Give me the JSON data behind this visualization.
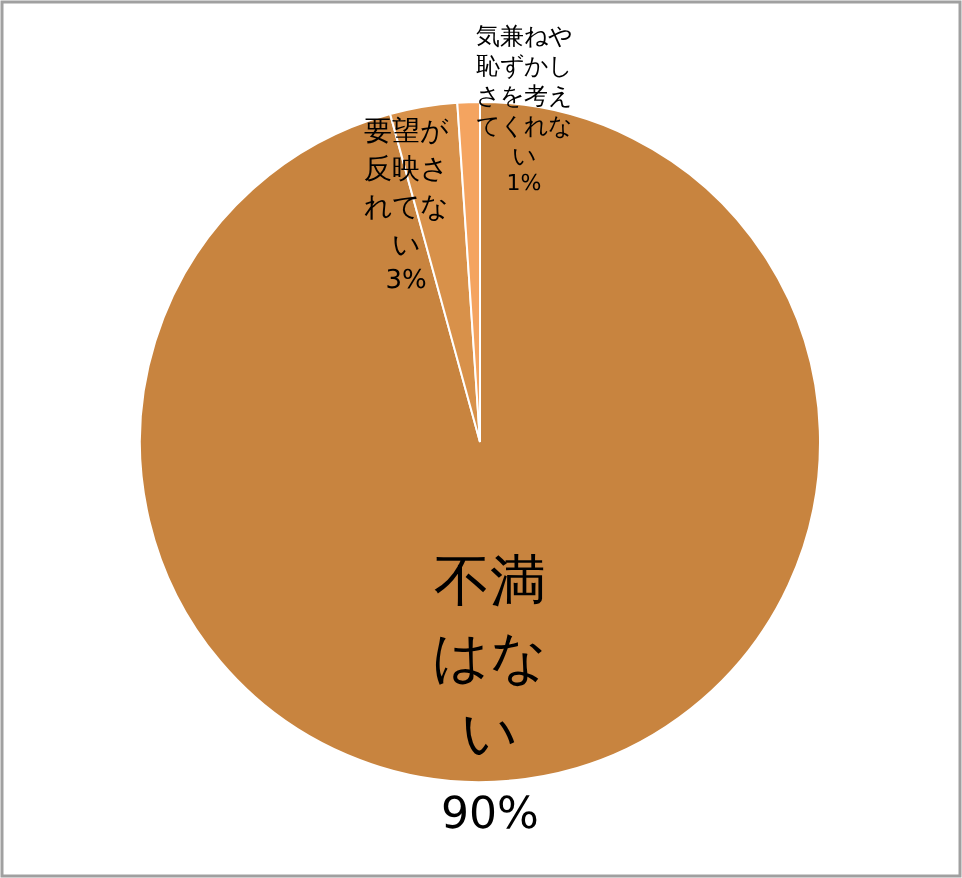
{
  "chart_data": {
    "type": "pie",
    "categories": [
      "不満はない",
      "要望が反映されてない",
      "気兼ねや恥ずかしさを考えてくれない"
    ],
    "values": [
      90,
      3,
      1
    ],
    "colors": [
      "#c8843f",
      "#d8914a",
      "#f4a460"
    ],
    "value_labels": [
      "90%",
      "3%",
      "1%"
    ]
  }
}
